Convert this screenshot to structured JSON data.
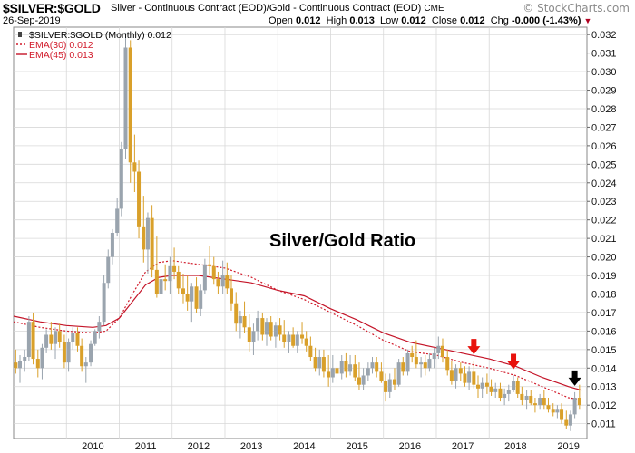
{
  "header": {
    "symbol": "$SILVER:$GOLD",
    "description": "Silver - Continuous Contract (EOD)/Gold - Continuous Contract (EOD)",
    "exchange": "CME",
    "date": "26-Sep-2019",
    "open_label": "Open",
    "open": "0.012",
    "high_label": "High",
    "high": "0.013",
    "low_label": "Low",
    "low": "0.012",
    "close_label": "Close",
    "close": "0.012",
    "chg_label": "Chg",
    "chg": "-0.000 (-1.43%)",
    "watermark": "© StockCharts.com"
  },
  "colors": {
    "up": "#9aa4ae",
    "down": "#d9a02a",
    "ema30": "#d11a2a",
    "ema45": "#c41428",
    "grid": "#d8d8d8",
    "arrow_red": "#e8120c",
    "arrow_black": "#000000"
  },
  "chart_data": {
    "type": "candlestick",
    "frequency": "Monthly",
    "ylim": [
      0.0102,
      0.0324
    ],
    "y_ticks": [
      "0.011",
      "0.012",
      "0.013",
      "0.014",
      "0.015",
      "0.016",
      "0.017",
      "0.018",
      "0.019",
      "0.020",
      "0.021",
      "0.022",
      "0.023",
      "0.024",
      "0.025",
      "0.026",
      "0.027",
      "0.028",
      "0.029",
      "0.030",
      "0.031",
      "0.032"
    ],
    "x_ticks": [
      "2010",
      "2011",
      "2012",
      "2013",
      "2014",
      "2015",
      "2016",
      "2017",
      "2018",
      "2019"
    ],
    "legend": [
      {
        "label": "$SILVER:$GOLD (Monthly) 0.012",
        "style": "bar"
      },
      {
        "label": "EMA(30) 0.012",
        "style": "dotted"
      },
      {
        "label": "EMA(45) 0.013",
        "style": "solid"
      }
    ],
    "annotation": "Silver/Gold Ratio",
    "markers": [
      {
        "date": "2017-09",
        "color": "red"
      },
      {
        "date": "2018-06",
        "color": "red"
      },
      {
        "date": "2019-08",
        "color": "black"
      }
    ],
    "ema_series": [
      {
        "name": "EMA(30)",
        "style": "dotted",
        "points": [
          [
            2009.0,
            0.0165
          ],
          [
            2009.5,
            0.0162
          ],
          [
            2010.0,
            0.016
          ],
          [
            2010.5,
            0.0159
          ],
          [
            2010.75,
            0.016
          ],
          [
            2011.0,
            0.0167
          ],
          [
            2011.25,
            0.018
          ],
          [
            2011.5,
            0.0192
          ],
          [
            2011.75,
            0.0197
          ],
          [
            2012.0,
            0.0198
          ],
          [
            2012.5,
            0.0196
          ],
          [
            2013.0,
            0.0194
          ],
          [
            2013.5,
            0.0189
          ],
          [
            2014.0,
            0.0182
          ],
          [
            2014.5,
            0.0177
          ],
          [
            2015.0,
            0.017
          ],
          [
            2015.5,
            0.0163
          ],
          [
            2016.0,
            0.0155
          ],
          [
            2016.5,
            0.0149
          ],
          [
            2017.0,
            0.0147
          ],
          [
            2017.5,
            0.0143
          ],
          [
            2018.0,
            0.014
          ],
          [
            2018.5,
            0.0136
          ],
          [
            2019.0,
            0.013
          ],
          [
            2019.5,
            0.0124
          ],
          [
            2019.75,
            0.0123
          ]
        ]
      },
      {
        "name": "EMA(45)",
        "style": "solid",
        "points": [
          [
            2009.0,
            0.0168
          ],
          [
            2009.5,
            0.0165
          ],
          [
            2010.0,
            0.0163
          ],
          [
            2010.5,
            0.0162
          ],
          [
            2010.75,
            0.0163
          ],
          [
            2011.0,
            0.0167
          ],
          [
            2011.25,
            0.0176
          ],
          [
            2011.5,
            0.0185
          ],
          [
            2011.75,
            0.0189
          ],
          [
            2012.0,
            0.019
          ],
          [
            2012.5,
            0.019
          ],
          [
            2013.0,
            0.0188
          ],
          [
            2013.5,
            0.0186
          ],
          [
            2014.0,
            0.0182
          ],
          [
            2014.5,
            0.0179
          ],
          [
            2015.0,
            0.0172
          ],
          [
            2015.5,
            0.0166
          ],
          [
            2016.0,
            0.0159
          ],
          [
            2016.5,
            0.0154
          ],
          [
            2017.0,
            0.0151
          ],
          [
            2017.5,
            0.0148
          ],
          [
            2018.0,
            0.0145
          ],
          [
            2018.5,
            0.0141
          ],
          [
            2019.0,
            0.0135
          ],
          [
            2019.5,
            0.013
          ],
          [
            2019.75,
            0.0128
          ]
        ]
      }
    ],
    "candles": [
      [
        2009.0,
        0.0143,
        0.015,
        0.0137,
        0.014
      ],
      [
        2009.08,
        0.014,
        0.0147,
        0.0132,
        0.0144
      ],
      [
        2009.17,
        0.0144,
        0.015,
        0.0138,
        0.0146
      ],
      [
        2009.25,
        0.0146,
        0.0168,
        0.0144,
        0.0165
      ],
      [
        2009.33,
        0.0165,
        0.017,
        0.0142,
        0.0145
      ],
      [
        2009.42,
        0.0145,
        0.015,
        0.0135,
        0.014
      ],
      [
        2009.5,
        0.014,
        0.0153,
        0.0134,
        0.0151
      ],
      [
        2009.58,
        0.0151,
        0.0161,
        0.0148,
        0.0158
      ],
      [
        2009.67,
        0.0158,
        0.0165,
        0.015,
        0.0153
      ],
      [
        2009.75,
        0.0153,
        0.0162,
        0.0145,
        0.016
      ],
      [
        2009.83,
        0.016,
        0.0164,
        0.0151,
        0.0154
      ],
      [
        2009.92,
        0.0154,
        0.0158,
        0.014,
        0.0143
      ],
      [
        2010.0,
        0.0143,
        0.0156,
        0.0138,
        0.0154
      ],
      [
        2010.08,
        0.0154,
        0.0162,
        0.015,
        0.0159
      ],
      [
        2010.17,
        0.0159,
        0.0162,
        0.0149,
        0.0152
      ],
      [
        2010.25,
        0.0152,
        0.0156,
        0.0138,
        0.0141
      ],
      [
        2010.33,
        0.0141,
        0.0146,
        0.0132,
        0.0143
      ],
      [
        2010.42,
        0.0143,
        0.0155,
        0.0141,
        0.0153
      ],
      [
        2010.5,
        0.0153,
        0.0161,
        0.0152,
        0.016
      ],
      [
        2010.58,
        0.016,
        0.0168,
        0.0156,
        0.0165
      ],
      [
        2010.67,
        0.0165,
        0.019,
        0.0163,
        0.0186
      ],
      [
        2010.75,
        0.0186,
        0.0204,
        0.0183,
        0.02
      ],
      [
        2010.83,
        0.02,
        0.0215,
        0.0196,
        0.0213
      ],
      [
        2010.92,
        0.0213,
        0.0232,
        0.0211,
        0.0226
      ],
      [
        2011.0,
        0.0226,
        0.0262,
        0.0222,
        0.0258
      ],
      [
        2011.08,
        0.0258,
        0.0321,
        0.0253,
        0.0313
      ],
      [
        2011.17,
        0.0313,
        0.0317,
        0.024,
        0.0251
      ],
      [
        2011.25,
        0.0251,
        0.0266,
        0.0235,
        0.0246
      ],
      [
        2011.33,
        0.0246,
        0.0252,
        0.021,
        0.0216
      ],
      [
        2011.42,
        0.0216,
        0.0233,
        0.0197,
        0.0204
      ],
      [
        2011.5,
        0.0204,
        0.0224,
        0.0191,
        0.0221
      ],
      [
        2011.58,
        0.0221,
        0.0228,
        0.0189,
        0.0193
      ],
      [
        2011.67,
        0.0193,
        0.0211,
        0.0178,
        0.018
      ],
      [
        2011.75,
        0.018,
        0.0195,
        0.0172,
        0.0188
      ],
      [
        2011.83,
        0.0188,
        0.0196,
        0.0182,
        0.0187
      ],
      [
        2011.92,
        0.0187,
        0.02,
        0.018,
        0.0195
      ],
      [
        2012.0,
        0.0195,
        0.0205,
        0.0188,
        0.0192
      ],
      [
        2012.08,
        0.0192,
        0.0195,
        0.018,
        0.0183
      ],
      [
        2012.17,
        0.0183,
        0.0191,
        0.0175,
        0.018
      ],
      [
        2012.25,
        0.018,
        0.019,
        0.0171,
        0.0176
      ],
      [
        2012.33,
        0.0176,
        0.0186,
        0.0165,
        0.0184
      ],
      [
        2012.42,
        0.0184,
        0.0189,
        0.017,
        0.0172
      ],
      [
        2012.5,
        0.0172,
        0.0185,
        0.0168,
        0.0182
      ],
      [
        2012.58,
        0.0182,
        0.0199,
        0.018,
        0.0196
      ],
      [
        2012.67,
        0.0196,
        0.0206,
        0.019,
        0.0195
      ],
      [
        2012.75,
        0.0195,
        0.02,
        0.0185,
        0.0188
      ],
      [
        2012.83,
        0.0188,
        0.0192,
        0.018,
        0.0184
      ],
      [
        2012.92,
        0.0184,
        0.0198,
        0.018,
        0.019
      ],
      [
        2013.0,
        0.019,
        0.0197,
        0.018,
        0.0183
      ],
      [
        2013.08,
        0.0183,
        0.019,
        0.0171,
        0.0175
      ],
      [
        2013.17,
        0.0175,
        0.0181,
        0.016,
        0.0164
      ],
      [
        2013.25,
        0.0164,
        0.0171,
        0.0156,
        0.0168
      ],
      [
        2013.33,
        0.0168,
        0.0176,
        0.0159,
        0.0162
      ],
      [
        2013.42,
        0.0162,
        0.0169,
        0.0149,
        0.0154
      ],
      [
        2013.5,
        0.0154,
        0.0164,
        0.0147,
        0.016
      ],
      [
        2013.58,
        0.016,
        0.0171,
        0.0155,
        0.0167
      ],
      [
        2013.67,
        0.0167,
        0.017,
        0.0155,
        0.0158
      ],
      [
        2013.75,
        0.0158,
        0.0167,
        0.0152,
        0.0165
      ],
      [
        2013.83,
        0.0165,
        0.0168,
        0.0155,
        0.0157
      ],
      [
        2013.92,
        0.0157,
        0.0165,
        0.0151,
        0.0163
      ],
      [
        2014.0,
        0.0163,
        0.0167,
        0.0155,
        0.0158
      ],
      [
        2014.08,
        0.0158,
        0.0166,
        0.0151,
        0.0154
      ],
      [
        2014.17,
        0.0154,
        0.016,
        0.0148,
        0.0158
      ],
      [
        2014.25,
        0.0158,
        0.0162,
        0.0151,
        0.0152
      ],
      [
        2014.33,
        0.0152,
        0.016,
        0.0148,
        0.0158
      ],
      [
        2014.42,
        0.0158,
        0.0165,
        0.0153,
        0.0156
      ],
      [
        2014.5,
        0.0156,
        0.016,
        0.0149,
        0.0152
      ],
      [
        2014.58,
        0.0152,
        0.0157,
        0.0144,
        0.0146
      ],
      [
        2014.67,
        0.0146,
        0.0151,
        0.0138,
        0.014
      ],
      [
        2014.75,
        0.014,
        0.015,
        0.0136,
        0.0146
      ],
      [
        2014.83,
        0.0146,
        0.015,
        0.0135,
        0.0138
      ],
      [
        2014.92,
        0.0138,
        0.0147,
        0.013,
        0.0135
      ],
      [
        2015.0,
        0.0135,
        0.0147,
        0.0132,
        0.014
      ],
      [
        2015.08,
        0.014,
        0.0143,
        0.0132,
        0.0137
      ],
      [
        2015.17,
        0.0137,
        0.0147,
        0.0134,
        0.0144
      ],
      [
        2015.25,
        0.0144,
        0.0148,
        0.0135,
        0.0138
      ],
      [
        2015.33,
        0.0138,
        0.0147,
        0.0136,
        0.0142
      ],
      [
        2015.42,
        0.0142,
        0.0147,
        0.0133,
        0.0135
      ],
      [
        2015.5,
        0.0135,
        0.0143,
        0.0128,
        0.0131
      ],
      [
        2015.58,
        0.0131,
        0.014,
        0.0128,
        0.0136
      ],
      [
        2015.67,
        0.0136,
        0.0143,
        0.0133,
        0.014
      ],
      [
        2015.75,
        0.014,
        0.0146,
        0.0137,
        0.0143
      ],
      [
        2015.83,
        0.0143,
        0.0146,
        0.0135,
        0.0138
      ],
      [
        2015.92,
        0.0138,
        0.0143,
        0.0132,
        0.0133
      ],
      [
        2016.0,
        0.0133,
        0.0137,
        0.0122,
        0.0127
      ],
      [
        2016.08,
        0.0127,
        0.0137,
        0.0124,
        0.0134
      ],
      [
        2016.17,
        0.0134,
        0.014,
        0.0128,
        0.0131
      ],
      [
        2016.25,
        0.0131,
        0.0145,
        0.013,
        0.0143
      ],
      [
        2016.33,
        0.0143,
        0.0146,
        0.0136,
        0.0138
      ],
      [
        2016.42,
        0.0138,
        0.015,
        0.0136,
        0.0148
      ],
      [
        2016.5,
        0.0148,
        0.0152,
        0.0143,
        0.0146
      ],
      [
        2016.58,
        0.0146,
        0.0155,
        0.014,
        0.0142
      ],
      [
        2016.67,
        0.0142,
        0.0146,
        0.0135,
        0.0143
      ],
      [
        2016.75,
        0.0143,
        0.0147,
        0.0136,
        0.014
      ],
      [
        2016.83,
        0.014,
        0.0148,
        0.0138,
        0.0145
      ],
      [
        2016.92,
        0.0145,
        0.0151,
        0.014,
        0.0148
      ],
      [
        2017.0,
        0.0148,
        0.0157,
        0.0145,
        0.0152
      ],
      [
        2017.08,
        0.0152,
        0.0156,
        0.0143,
        0.0146
      ],
      [
        2017.17,
        0.0146,
        0.015,
        0.0136,
        0.0139
      ],
      [
        2017.25,
        0.0139,
        0.0144,
        0.0131,
        0.0133
      ],
      [
        2017.33,
        0.0133,
        0.0142,
        0.0129,
        0.014
      ],
      [
        2017.42,
        0.014,
        0.0143,
        0.0133,
        0.0137
      ],
      [
        2017.5,
        0.0137,
        0.0141,
        0.013,
        0.0132
      ],
      [
        2017.58,
        0.0132,
        0.0141,
        0.0128,
        0.0138
      ],
      [
        2017.67,
        0.0138,
        0.0144,
        0.0129,
        0.0131
      ],
      [
        2017.75,
        0.0131,
        0.0136,
        0.0124,
        0.0129
      ],
      [
        2017.83,
        0.0129,
        0.0135,
        0.0124,
        0.0132
      ],
      [
        2017.92,
        0.0132,
        0.0137,
        0.0126,
        0.013
      ],
      [
        2018.0,
        0.013,
        0.0134,
        0.0125,
        0.0127
      ],
      [
        2018.08,
        0.0127,
        0.0132,
        0.0124,
        0.0129
      ],
      [
        2018.17,
        0.0129,
        0.0132,
        0.0122,
        0.0124
      ],
      [
        2018.25,
        0.0124,
        0.0129,
        0.012,
        0.0126
      ],
      [
        2018.33,
        0.0126,
        0.0131,
        0.0122,
        0.0128
      ],
      [
        2018.42,
        0.0128,
        0.0136,
        0.0127,
        0.0133
      ],
      [
        2018.5,
        0.0133,
        0.0135,
        0.0124,
        0.0126
      ],
      [
        2018.58,
        0.0126,
        0.013,
        0.012,
        0.0123
      ],
      [
        2018.67,
        0.0123,
        0.0128,
        0.0118,
        0.0125
      ],
      [
        2018.75,
        0.0125,
        0.0128,
        0.012,
        0.0121
      ],
      [
        2018.83,
        0.0121,
        0.0124,
        0.0116,
        0.012
      ],
      [
        2018.92,
        0.012,
        0.0126,
        0.0118,
        0.0124
      ],
      [
        2019.0,
        0.0124,
        0.0128,
        0.0118,
        0.012
      ],
      [
        2019.08,
        0.012,
        0.0124,
        0.0116,
        0.0118
      ],
      [
        2019.17,
        0.0118,
        0.0121,
        0.0114,
        0.0116
      ],
      [
        2019.25,
        0.0116,
        0.012,
        0.0113,
        0.0118
      ],
      [
        2019.33,
        0.0118,
        0.0121,
        0.011,
        0.0112
      ],
      [
        2019.42,
        0.0112,
        0.0117,
        0.0107,
        0.0109
      ],
      [
        2019.5,
        0.0109,
        0.0117,
        0.0106,
        0.0115
      ],
      [
        2019.58,
        0.0115,
        0.0127,
        0.0113,
        0.0124
      ],
      [
        2019.67,
        0.0124,
        0.0131,
        0.0118,
        0.012
      ]
    ]
  }
}
